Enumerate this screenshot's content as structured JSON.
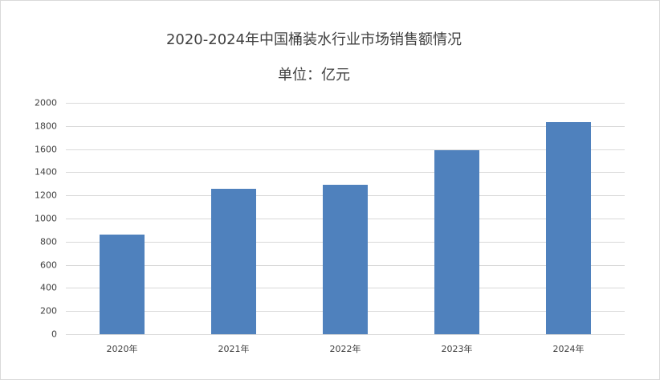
{
  "chart_data": {
    "type": "bar",
    "title": "2020-2024年中国桶装水行业市场销售额情况",
    "subtitle": "单位：亿元",
    "xlabel": "",
    "ylabel": "",
    "categories": [
      "2020年",
      "2021年",
      "2022年",
      "2023年",
      "2024年"
    ],
    "values": [
      861,
      1257,
      1292,
      1590,
      1833
    ],
    "ylim": [
      0,
      2000
    ],
    "yticks": [
      0,
      200,
      400,
      600,
      800,
      1000,
      1200,
      1400,
      1600,
      1800,
      2000
    ],
    "ytick_labels": [
      "0",
      "200",
      "400",
      "600",
      "800",
      "1000",
      "1200",
      "1400",
      "1600",
      "1800",
      "2000"
    ],
    "grid": true,
    "legend": null,
    "bar_color": "#4f81bd"
  }
}
